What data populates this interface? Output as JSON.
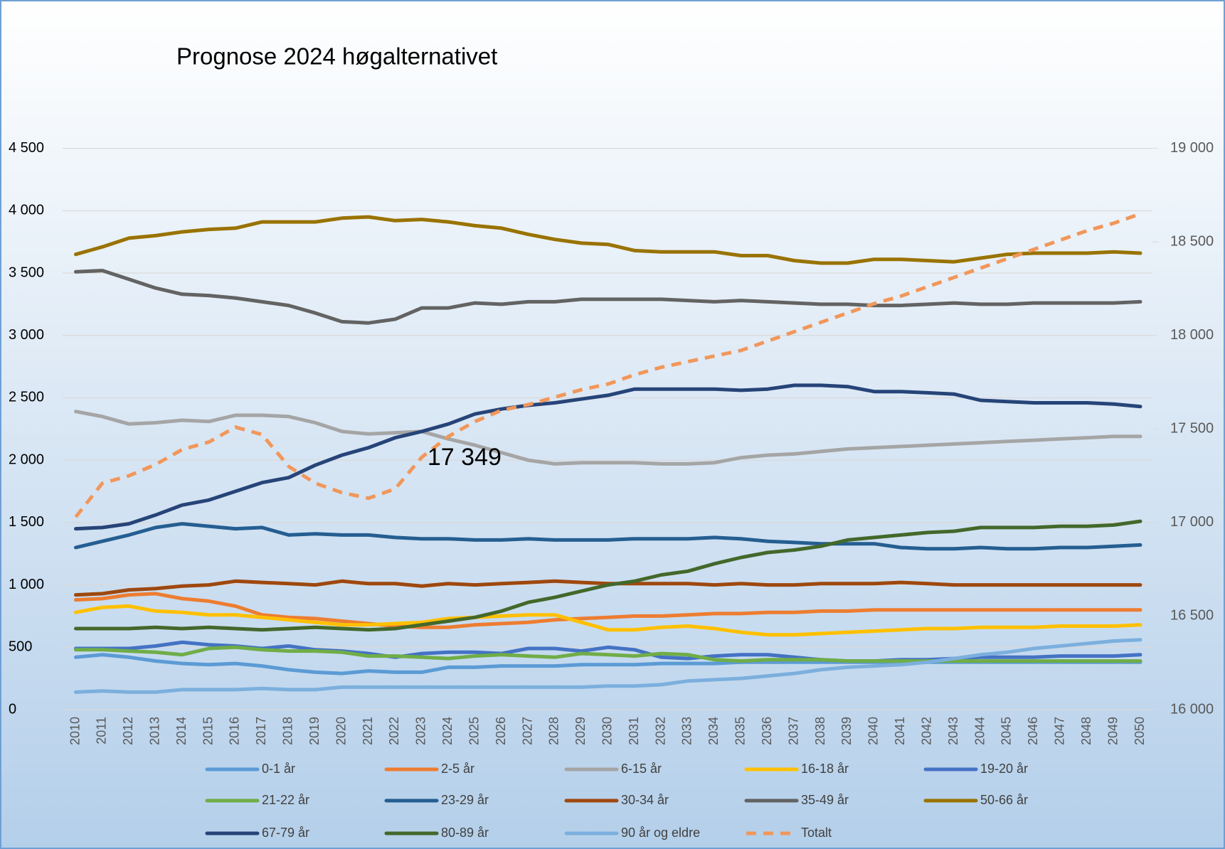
{
  "chart_data": {
    "type": "line",
    "title": "Prognose 2024  høgalternativet",
    "categories": [
      "2010",
      "2011",
      "2012",
      "2013",
      "2014",
      "2015",
      "2016",
      "2017",
      "2018",
      "2019",
      "2020",
      "2021",
      "2022",
      "2023",
      "2024",
      "2025",
      "2026",
      "2027",
      "2028",
      "2029",
      "2030",
      "2031",
      "2032",
      "2033",
      "2034",
      "2035",
      "2036",
      "2037",
      "2038",
      "2039",
      "2040",
      "2041",
      "2042",
      "2043",
      "2044",
      "2045",
      "2046",
      "2047",
      "2048",
      "2049",
      "2050"
    ],
    "ylim": [
      0,
      4500
    ],
    "yticks": [
      0,
      {
        "value": 500,
        "label": "500"
      },
      {
        "value": 1000,
        "label": "1 000"
      },
      {
        "value": 1500,
        "label": "1 500"
      },
      {
        "value": 2000,
        "label": "2 000"
      },
      {
        "value": 2500,
        "label": "2 500"
      },
      {
        "value": 3000,
        "label": "3 000"
      },
      {
        "value": 3500,
        "label": "3 500"
      },
      {
        "value": 4000,
        "label": "4 000"
      },
      {
        "value": 4500,
        "label": "4 500"
      }
    ],
    "y2lim": [
      16000,
      19000
    ],
    "y2ticks": [
      {
        "value": 16000,
        "label": "16 000"
      },
      {
        "value": 16500,
        "label": "16 500"
      },
      {
        "value": 17000,
        "label": "17 000"
      },
      {
        "value": 17500,
        "label": "17 500"
      },
      {
        "value": 18000,
        "label": "18 000"
      },
      {
        "value": 18500,
        "label": "18 500"
      },
      {
        "value": 19000,
        "label": "19 000"
      }
    ],
    "grid": true,
    "legend": "bottom",
    "series": [
      {
        "name": "0-1 år",
        "color": "#5b9bd5",
        "values": [
          420,
          440,
          420,
          390,
          370,
          360,
          370,
          350,
          320,
          300,
          290,
          310,
          300,
          300,
          340,
          340,
          350,
          350,
          350,
          360,
          360,
          360,
          370,
          370,
          370,
          380,
          380,
          380,
          380,
          380,
          380,
          380,
          380,
          380,
          380,
          380,
          380,
          380,
          380,
          380,
          380
        ]
      },
      {
        "name": "2-5 år",
        "color": "#ed7d31",
        "values": [
          880,
          890,
          920,
          930,
          890,
          870,
          830,
          760,
          740,
          730,
          710,
          690,
          670,
          660,
          660,
          680,
          690,
          700,
          720,
          730,
          740,
          750,
          750,
          760,
          770,
          770,
          780,
          780,
          790,
          790,
          800,
          800,
          800,
          800,
          800,
          800,
          800,
          800,
          800,
          800,
          800
        ]
      },
      {
        "name": "6-15 år",
        "color": "#a5a5a5",
        "values": [
          2390,
          2350,
          2290,
          2300,
          2320,
          2310,
          2360,
          2360,
          2350,
          2300,
          2230,
          2210,
          2220,
          2230,
          2170,
          2120,
          2060,
          2000,
          1970,
          1980,
          1980,
          1980,
          1970,
          1970,
          1980,
          2020,
          2040,
          2050,
          2070,
          2090,
          2100,
          2110,
          2120,
          2130,
          2140,
          2150,
          2160,
          2170,
          2180,
          2190,
          2190
        ]
      },
      {
        "name": "16-18 år",
        "color": "#ffc000",
        "values": [
          780,
          820,
          830,
          790,
          780,
          760,
          760,
          740,
          720,
          700,
          680,
          680,
          690,
          700,
          730,
          740,
          750,
          760,
          760,
          700,
          640,
          640,
          660,
          670,
          650,
          620,
          600,
          600,
          610,
          620,
          630,
          640,
          650,
          650,
          660,
          660,
          660,
          670,
          670,
          670,
          680
        ]
      },
      {
        "name": "19-20 år",
        "color": "#4472c4",
        "values": [
          490,
          490,
          490,
          510,
          540,
          520,
          510,
          490,
          510,
          480,
          470,
          450,
          420,
          450,
          460,
          460,
          450,
          490,
          490,
          470,
          500,
          480,
          420,
          410,
          430,
          440,
          440,
          420,
          400,
          390,
          390,
          400,
          400,
          410,
          420,
          420,
          420,
          430,
          430,
          430,
          440
        ]
      },
      {
        "name": "21-22 år",
        "color": "#70ad47",
        "values": [
          480,
          480,
          470,
          460,
          440,
          490,
          500,
          480,
          470,
          470,
          460,
          430,
          430,
          420,
          410,
          430,
          440,
          430,
          420,
          450,
          440,
          430,
          450,
          440,
          400,
          390,
          400,
          400,
          400,
          390,
          390,
          390,
          390,
          390,
          390,
          390,
          390,
          390,
          390,
          390,
          390
        ]
      },
      {
        "name": "23-29 år",
        "color": "#255e91",
        "values": [
          1300,
          1350,
          1400,
          1460,
          1490,
          1470,
          1450,
          1460,
          1400,
          1410,
          1400,
          1400,
          1380,
          1370,
          1370,
          1360,
          1360,
          1370,
          1360,
          1360,
          1360,
          1370,
          1370,
          1370,
          1380,
          1370,
          1350,
          1340,
          1330,
          1330,
          1330,
          1300,
          1290,
          1290,
          1300,
          1290,
          1290,
          1300,
          1300,
          1310,
          1320
        ]
      },
      {
        "name": "30-34 år",
        "color": "#9e480e",
        "values": [
          920,
          930,
          960,
          970,
          990,
          1000,
          1030,
          1020,
          1010,
          1000,
          1030,
          1010,
          1010,
          990,
          1010,
          1000,
          1010,
          1020,
          1030,
          1020,
          1010,
          1010,
          1010,
          1010,
          1000,
          1010,
          1000,
          1000,
          1010,
          1010,
          1010,
          1020,
          1010,
          1000,
          1000,
          1000,
          1000,
          1000,
          1000,
          1000,
          1000
        ]
      },
      {
        "name": "35-49 år",
        "color": "#636363",
        "values": [
          3510,
          3520,
          3450,
          3380,
          3330,
          3320,
          3300,
          3270,
          3240,
          3180,
          3110,
          3100,
          3130,
          3220,
          3220,
          3260,
          3250,
          3270,
          3270,
          3290,
          3290,
          3290,
          3290,
          3280,
          3270,
          3280,
          3270,
          3260,
          3250,
          3250,
          3240,
          3240,
          3250,
          3260,
          3250,
          3250,
          3260,
          3260,
          3260,
          3260,
          3270
        ]
      },
      {
        "name": "50-66 år",
        "color": "#997300",
        "values": [
          3650,
          3710,
          3780,
          3800,
          3830,
          3850,
          3860,
          3910,
          3910,
          3910,
          3940,
          3950,
          3920,
          3930,
          3910,
          3880,
          3860,
          3810,
          3770,
          3740,
          3730,
          3680,
          3670,
          3670,
          3670,
          3640,
          3640,
          3600,
          3580,
          3580,
          3610,
          3610,
          3600,
          3590,
          3620,
          3650,
          3660,
          3660,
          3660,
          3670,
          3660
        ]
      },
      {
        "name": "67-79 år",
        "color": "#264478",
        "values": [
          1450,
          1460,
          1490,
          1560,
          1640,
          1680,
          1750,
          1820,
          1860,
          1960,
          2040,
          2100,
          2180,
          2230,
          2290,
          2370,
          2410,
          2440,
          2460,
          2490,
          2520,
          2570,
          2570,
          2570,
          2570,
          2560,
          2570,
          2600,
          2600,
          2590,
          2550,
          2550,
          2540,
          2530,
          2480,
          2470,
          2460,
          2460,
          2460,
          2450,
          2430
        ]
      },
      {
        "name": "80-89 år",
        "color": "#43682b",
        "values": [
          650,
          650,
          650,
          660,
          650,
          660,
          650,
          640,
          650,
          660,
          650,
          640,
          650,
          680,
          710,
          740,
          790,
          860,
          900,
          950,
          1000,
          1030,
          1080,
          1110,
          1170,
          1220,
          1260,
          1280,
          1310,
          1360,
          1380,
          1400,
          1420,
          1430,
          1460,
          1460,
          1460,
          1470,
          1470,
          1480,
          1510
        ]
      },
      {
        "name": "90 år og eldre",
        "color": "#7cafdd",
        "values": [
          140,
          150,
          140,
          140,
          160,
          160,
          160,
          170,
          160,
          160,
          180,
          180,
          180,
          180,
          180,
          180,
          180,
          180,
          180,
          180,
          190,
          190,
          200,
          230,
          240,
          250,
          270,
          290,
          320,
          340,
          350,
          360,
          380,
          410,
          440,
          460,
          490,
          510,
          530,
          550,
          560
        ]
      },
      {
        "name": "Totalt",
        "color": "#f1975a",
        "dashed": true,
        "axis": "y2",
        "values": [
          17030,
          17210,
          17250,
          17310,
          17390,
          17430,
          17510,
          17470,
          17300,
          17210,
          17160,
          17130,
          17180,
          17349,
          17460,
          17540,
          17600,
          17630,
          17670,
          17710,
          17740,
          17790,
          17830,
          17860,
          17890,
          17920,
          17970,
          18020,
          18070,
          18120,
          18170,
          18210,
          18260,
          18310,
          18360,
          18410,
          18460,
          18510,
          18560,
          18600,
          18650
        ],
        "value_labels": [
          null,
          null,
          null,
          null,
          null,
          null,
          null,
          null,
          null,
          null,
          null,
          null,
          null,
          "17 349",
          null,
          null,
          null,
          null,
          null,
          null,
          null,
          null,
          null,
          null,
          null,
          null,
          null,
          null,
          null,
          null,
          null,
          null,
          null,
          null,
          null,
          null,
          null,
          null,
          null,
          null,
          null
        ]
      }
    ]
  }
}
